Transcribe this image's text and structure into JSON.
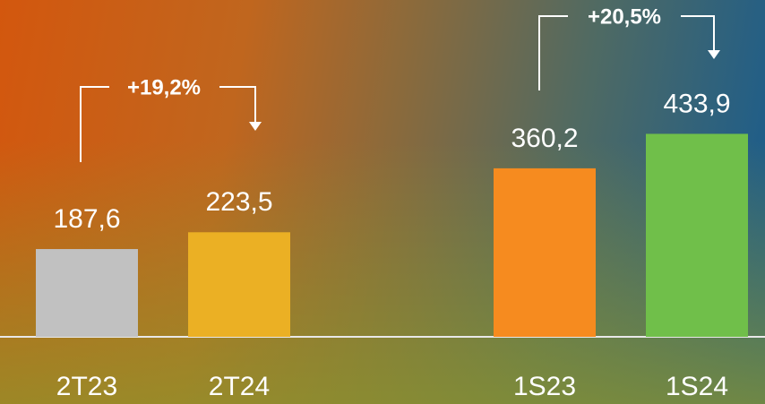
{
  "chart_data": {
    "type": "bar",
    "categories": [
      "2T23",
      "2T24",
      "1S23",
      "1S24"
    ],
    "values": [
      187.6,
      223.5,
      360.2,
      433.9
    ],
    "value_labels": [
      "187,6",
      "223,5",
      "360,2",
      "433,9"
    ],
    "colors": [
      "#c1c1c1",
      "#ebb024",
      "#f68b1f",
      "#70bf4a"
    ],
    "ylim": [
      0,
      720
    ],
    "annotations": [
      "+19,2%",
      "+20,5%"
    ]
  }
}
